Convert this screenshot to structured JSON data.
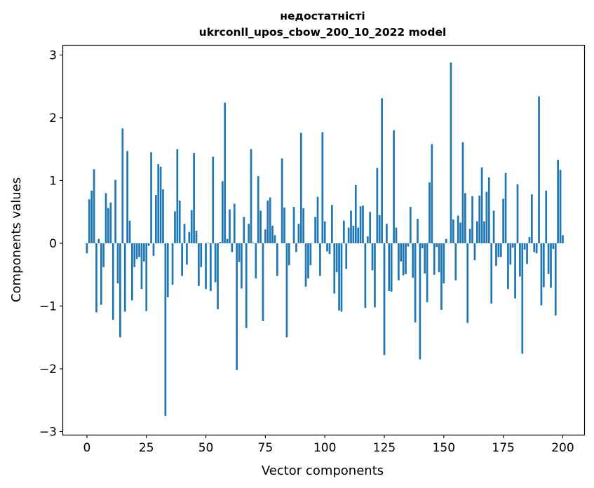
{
  "chart_data": {
    "type": "bar",
    "title_line1": "недостатністі",
    "title_line2": "ukrconll_upos_cbow_200_10_2022 model",
    "xlabel": "Vector components",
    "ylabel": "Components values",
    "xlim": [
      -10,
      209
    ],
    "ylim": [
      -3.05,
      3.15
    ],
    "x_ticks": [
      0,
      25,
      50,
      75,
      100,
      125,
      150,
      175,
      200
    ],
    "y_ticks": [
      -3,
      -2,
      -1,
      0,
      1,
      2,
      3
    ],
    "x_tick_labels": [
      "0",
      "25",
      "50",
      "75",
      "100",
      "125",
      "150",
      "175",
      "200"
    ],
    "y_tick_labels": [
      "−3",
      "−2",
      "−1",
      "0",
      "1",
      "2",
      "3"
    ],
    "bar_color": "#1f77b4",
    "values": [
      -0.16,
      0.7,
      0.84,
      1.18,
      -1.1,
      0.07,
      -0.98,
      -0.38,
      0.8,
      0.56,
      0.65,
      -1.22,
      1.01,
      -0.64,
      -1.5,
      1.83,
      -1.09,
      1.47,
      0.36,
      -0.91,
      -0.38,
      -0.25,
      -0.22,
      -0.73,
      -0.29,
      -1.08,
      -0.04,
      1.45,
      -0.2,
      0.77,
      1.26,
      1.22,
      0.86,
      -2.75,
      -0.86,
      0.0,
      -0.66,
      0.51,
      1.5,
      0.68,
      -0.52,
      0.31,
      -0.34,
      0.18,
      0.53,
      1.44,
      0.2,
      -0.68,
      -0.38,
      0.0,
      -0.73,
      0.01,
      -0.76,
      1.38,
      -0.62,
      -1.05,
      0.02,
      0.99,
      2.24,
      0.07,
      0.54,
      -0.14,
      0.63,
      -2.02,
      -0.3,
      -0.72,
      0.42,
      -1.35,
      0.31,
      1.5,
      0.01,
      -0.56,
      1.07,
      0.52,
      -1.24,
      0.22,
      0.68,
      0.73,
      0.28,
      0.13,
      -0.52,
      0.0,
      1.35,
      0.57,
      -1.5,
      -0.35,
      0.0,
      0.58,
      -0.14,
      0.31,
      1.76,
      0.56,
      -0.69,
      -0.56,
      -0.35,
      0.0,
      0.42,
      0.74,
      -0.52,
      1.77,
      0.35,
      -0.13,
      -0.17,
      0.61,
      -0.8,
      -0.46,
      -1.07,
      -1.09,
      0.36,
      -0.41,
      0.25,
      0.52,
      0.28,
      0.93,
      0.25,
      0.59,
      0.6,
      -1.03,
      0.11,
      0.5,
      -0.43,
      -1.02,
      1.2,
      0.45,
      2.31,
      -1.78,
      0.31,
      -0.76,
      -0.77,
      1.8,
      0.25,
      -0.59,
      -0.29,
      -0.51,
      -0.49,
      -0.05,
      0.58,
      -0.55,
      -1.26,
      0.39,
      -1.85,
      -0.08,
      -0.48,
      -0.94,
      0.97,
      1.58,
      -0.5,
      -0.06,
      -0.46,
      -1.06,
      -0.64,
      0.07,
      0.0,
      2.88,
      0.38,
      -0.59,
      0.44,
      0.33,
      1.61,
      0.8,
      -1.27,
      0.23,
      0.75,
      -0.27,
      0.35,
      0.76,
      1.21,
      0.35,
      0.82,
      1.05,
      -0.96,
      0.52,
      -0.36,
      -0.22,
      -0.22,
      0.71,
      1.12,
      -0.73,
      -0.34,
      -0.07,
      -0.88,
      0.94,
      -0.53,
      -1.76,
      -0.1,
      -0.33,
      0.1,
      0.78,
      -0.14,
      -0.16,
      2.34,
      -0.99,
      -0.7,
      0.84,
      -0.49,
      -0.71,
      -0.09,
      -1.15,
      1.33,
      1.17,
      0.13
    ]
  }
}
